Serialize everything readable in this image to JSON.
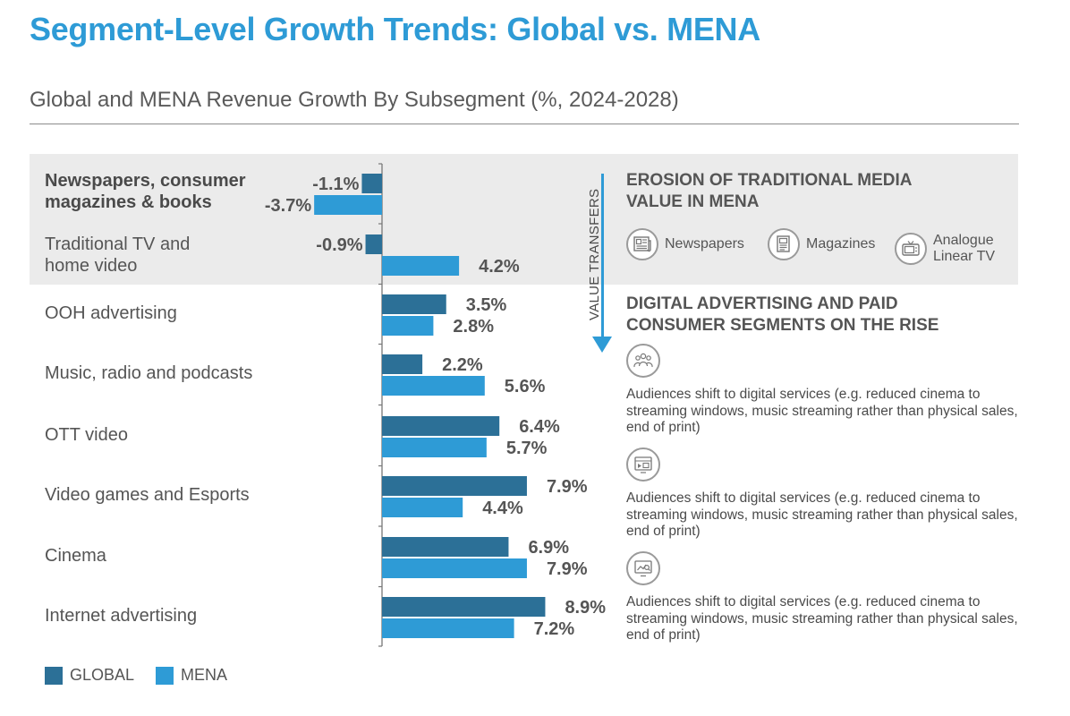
{
  "header": {
    "title": "Segment-Level Growth Trends: Global vs. MENA",
    "subtitle": "Global and MENA Revenue Growth By Subsegment (%, 2024-2028)"
  },
  "colors": {
    "global": "#2c7097",
    "mena": "#2e9bd6",
    "title": "#2e9bd6",
    "band": "#ebebeb"
  },
  "chart_data": {
    "type": "bar",
    "orientation": "horizontal",
    "categories": [
      "Newspapers, consumer magazines & books",
      "Traditional TV and home video",
      "OOH advertising",
      "Music, radio and podcasts",
      "OTT video",
      "Video games and Esports",
      "Cinema",
      "Internet advertising"
    ],
    "series": [
      {
        "name": "GLOBAL",
        "values": [
          -1.1,
          -0.9,
          3.5,
          2.2,
          6.4,
          7.9,
          6.9,
          8.9
        ]
      },
      {
        "name": "MENA",
        "values": [
          -3.7,
          4.2,
          2.8,
          5.6,
          5.7,
          4.4,
          7.9,
          7.2
        ]
      }
    ],
    "value_labels": {
      "GLOBAL": [
        "-1.1%",
        "-0.9%",
        "3.5%",
        "2.2%",
        "6.4%",
        "7.9%",
        "6.9%",
        "8.9%"
      ],
      "MENA": [
        "-3.7%",
        "4.2%",
        "2.8%",
        "5.6%",
        "5.7%",
        "4.4%",
        "7.9%",
        "7.2%"
      ]
    },
    "title": "Global and MENA Revenue Growth By Subsegment (%, 2024-2028)",
    "legend_position": "bottom-left",
    "highlighted_categories": [
      "Newspapers, consumer magazines & books",
      "Traditional TV and home video"
    ]
  },
  "categories_display": [
    "Newspapers, consumer\nmagazines & books",
    "Traditional TV and\nhome video",
    "OOH advertising",
    "Music, radio and podcasts",
    "OTT video",
    "Video games and Esports",
    "Cinema",
    "Internet advertising"
  ],
  "legend": {
    "global": "GLOBAL",
    "mena": "MENA"
  },
  "value_transfers": "VALUE TRANSFERS",
  "traditional": {
    "heading": "EROSION OF TRADITIONAL MEDIA\nVALUE IN MENA",
    "icons": [
      {
        "icon": "newspaper-icon",
        "label": "Newspapers"
      },
      {
        "icon": "magazine-icon",
        "label": "Magazines"
      },
      {
        "icon": "tv-icon",
        "label": "Analogue\nLinear TV"
      }
    ]
  },
  "digital": {
    "heading": "DIGITAL ADVERTISING AND PAID\nCONSUMER SEGMENTS ON THE RISE",
    "items": [
      {
        "icon": "audience-icon",
        "text": "Audiences shift to digital services (e.g. reduced cinema to streaming windows, music streaming rather than physical sales, end of print)"
      },
      {
        "icon": "digital-media-icon",
        "text": "Audiences shift to digital services (e.g. reduced cinema to streaming windows, music streaming rather than physical sales, end of print)"
      },
      {
        "icon": "analytics-screen-icon",
        "text": "Audiences shift to digital services (e.g. reduced cinema to streaming windows, music streaming rather than physical sales, end of print)"
      }
    ]
  }
}
